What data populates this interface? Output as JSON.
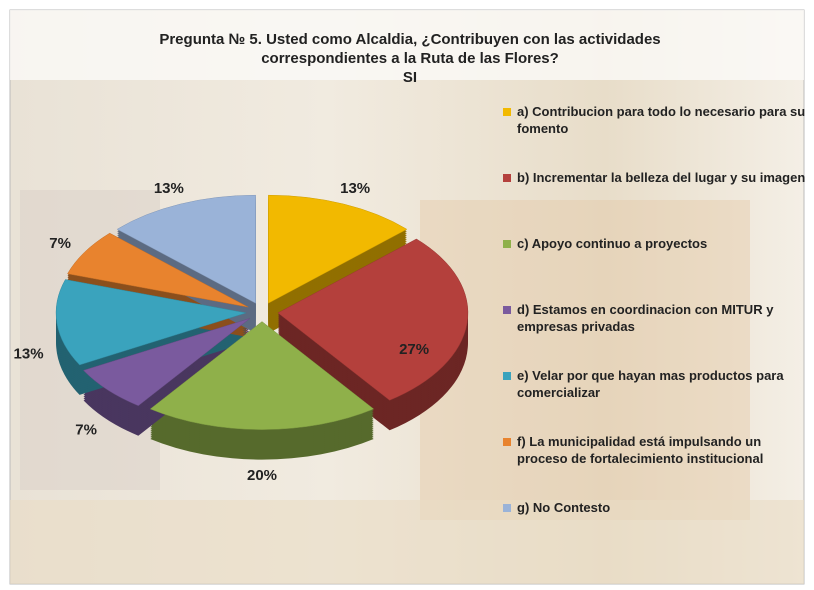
{
  "chart_data": {
    "type": "pie",
    "title": "Pregunta № 5. Usted como Alcaldia, ¿Contribuyen con las actividades correspondientes a la Ruta de las Flores?",
    "subtitle": "SI",
    "categories": [
      "a) Contribucion para todo lo necesario para su fomento",
      "b) Incrementar la belleza del lugar y su imagen",
      "c) Apoyo continuo a proyectos",
      "d) Estamos en coordinacion con MITUR y empresas privadas",
      "e) Velar por que hayan mas productos para comercializar",
      "f) La municipalidad está impulsando un proceso de fortalecimiento institucional",
      "g) No Contesto"
    ],
    "values": [
      13,
      27,
      20,
      7,
      13,
      7,
      13
    ],
    "value_labels": [
      "13%",
      "27%",
      "20%",
      "7%",
      "13%",
      "7%",
      "13%"
    ],
    "colors": [
      "#f2b900",
      "#b4403c",
      "#8fb04a",
      "#7a5a9e",
      "#3aa3bd",
      "#e8832e",
      "#9ab3d8"
    ],
    "legend": "right"
  }
}
